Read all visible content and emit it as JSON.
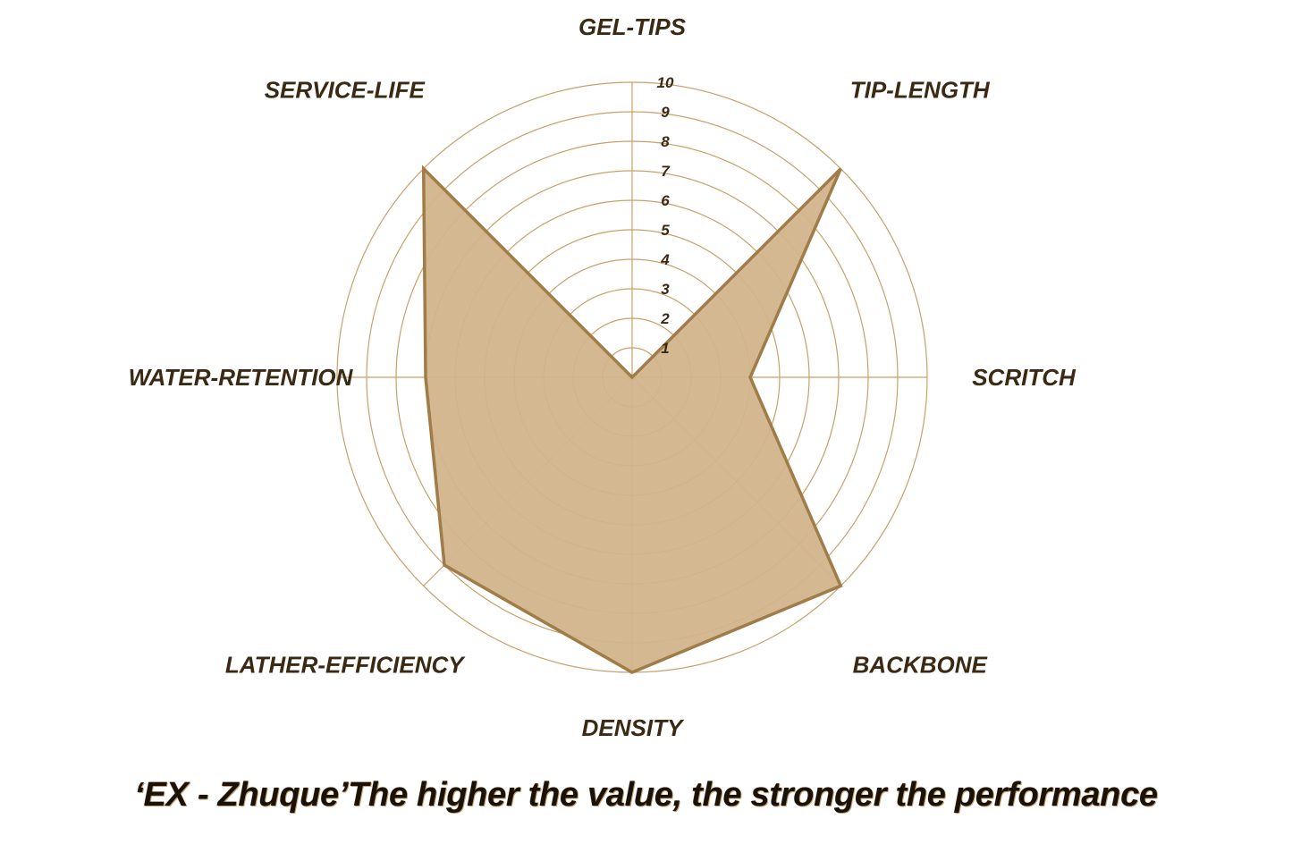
{
  "chart_data": {
    "type": "radar",
    "title": "",
    "caption": "‘EX - Zhuque’The higher the value, the stronger the performance",
    "axes": [
      "GEL-TIPS",
      "TIP-LENGTH",
      "SCRITCH",
      "BACKBONE",
      "DENSITY",
      "LATHER-EFFICIENCY",
      "WATER-RETENTION",
      "SERVICE-LIFE"
    ],
    "rlim": [
      0,
      10
    ],
    "ticks": [
      "1",
      "2",
      "3",
      "4",
      "5",
      "6",
      "7",
      "8",
      "9",
      "10"
    ],
    "series": [
      {
        "values": [
          0,
          10,
          4,
          10,
          10,
          9,
          7,
          10
        ]
      }
    ],
    "grid": true,
    "colors": {
      "fill": "#d2b48c",
      "stroke": "#a07c48",
      "grid": "#c9a06a",
      "text": "#3a2a14"
    }
  }
}
